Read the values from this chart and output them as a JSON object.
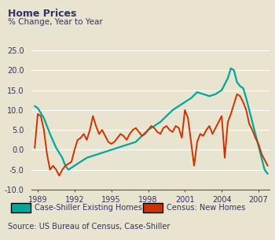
{
  "title": "Home Prices",
  "subtitle": "% Change, Year to Year",
  "source": "Source: US Bureau of Census, Case-Shiller",
  "legend_cs": "Case-Shiller Existing Homes",
  "legend_cn": "Census: New Homes",
  "color_cs": "#00a89c",
  "color_cn": "#cc3300",
  "bg_color": "#e8e4d0",
  "ylim": [
    -10.0,
    25.0
  ],
  "yticks": [
    -10.0,
    -5.0,
    0.0,
    5.0,
    10.0,
    15.0,
    20.0,
    25.0
  ],
  "xticks": [
    1989,
    1992,
    1995,
    1998,
    2001,
    2004,
    2007
  ],
  "xlim": [
    1988.5,
    2007.9
  ],
  "case_shiller": [
    [
      1988.75,
      11.0
    ],
    [
      1989.0,
      10.5
    ],
    [
      1989.5,
      8.0
    ],
    [
      1990.0,
      4.0
    ],
    [
      1990.5,
      0.5
    ],
    [
      1991.0,
      -2.0
    ],
    [
      1991.25,
      -4.0
    ],
    [
      1991.5,
      -5.0
    ],
    [
      1992.0,
      -4.0
    ],
    [
      1992.5,
      -3.0
    ],
    [
      1993.0,
      -2.0
    ],
    [
      1993.5,
      -1.5
    ],
    [
      1994.0,
      -1.0
    ],
    [
      1994.5,
      -0.5
    ],
    [
      1995.0,
      0.0
    ],
    [
      1995.5,
      0.5
    ],
    [
      1996.0,
      1.0
    ],
    [
      1996.5,
      1.5
    ],
    [
      1997.0,
      2.0
    ],
    [
      1997.5,
      3.5
    ],
    [
      1998.0,
      5.0
    ],
    [
      1998.5,
      6.0
    ],
    [
      1999.0,
      7.0
    ],
    [
      1999.5,
      8.5
    ],
    [
      2000.0,
      10.0
    ],
    [
      2000.5,
      11.0
    ],
    [
      2001.0,
      12.0
    ],
    [
      2001.5,
      13.0
    ],
    [
      2002.0,
      14.5
    ],
    [
      2002.5,
      14.0
    ],
    [
      2003.0,
      13.5
    ],
    [
      2003.5,
      14.0
    ],
    [
      2004.0,
      15.0
    ],
    [
      2004.25,
      16.5
    ],
    [
      2004.5,
      18.0
    ],
    [
      2004.75,
      20.5
    ],
    [
      2005.0,
      20.0
    ],
    [
      2005.25,
      17.0
    ],
    [
      2005.5,
      16.0
    ],
    [
      2005.75,
      15.5
    ],
    [
      2006.0,
      13.0
    ],
    [
      2006.25,
      10.0
    ],
    [
      2006.5,
      7.0
    ],
    [
      2006.75,
      4.0
    ],
    [
      2007.0,
      1.0
    ],
    [
      2007.25,
      -2.0
    ],
    [
      2007.5,
      -5.0
    ],
    [
      2007.75,
      -6.0
    ]
  ],
  "census": [
    [
      1988.75,
      0.5
    ],
    [
      1989.0,
      9.0
    ],
    [
      1989.25,
      8.5
    ],
    [
      1989.5,
      5.0
    ],
    [
      1989.75,
      -1.0
    ],
    [
      1990.0,
      -5.0
    ],
    [
      1990.25,
      -4.0
    ],
    [
      1990.5,
      -5.0
    ],
    [
      1990.75,
      -6.5
    ],
    [
      1991.0,
      -5.0
    ],
    [
      1991.25,
      -4.0
    ],
    [
      1991.5,
      -3.5
    ],
    [
      1991.75,
      -3.0
    ],
    [
      1992.0,
      0.0
    ],
    [
      1992.25,
      2.5
    ],
    [
      1992.5,
      3.0
    ],
    [
      1992.75,
      4.0
    ],
    [
      1993.0,
      2.5
    ],
    [
      1993.25,
      5.0
    ],
    [
      1993.5,
      8.5
    ],
    [
      1993.75,
      6.0
    ],
    [
      1994.0,
      4.0
    ],
    [
      1994.25,
      5.0
    ],
    [
      1994.5,
      3.5
    ],
    [
      1994.75,
      2.0
    ],
    [
      1995.0,
      1.5
    ],
    [
      1995.25,
      2.0
    ],
    [
      1995.5,
      3.0
    ],
    [
      1995.75,
      4.0
    ],
    [
      1996.0,
      3.5
    ],
    [
      1996.25,
      2.5
    ],
    [
      1996.5,
      4.0
    ],
    [
      1996.75,
      5.0
    ],
    [
      1997.0,
      5.5
    ],
    [
      1997.25,
      4.5
    ],
    [
      1997.5,
      3.5
    ],
    [
      1997.75,
      4.0
    ],
    [
      1998.0,
      5.0
    ],
    [
      1998.25,
      6.0
    ],
    [
      1998.5,
      5.5
    ],
    [
      1998.75,
      4.5
    ],
    [
      1999.0,
      4.0
    ],
    [
      1999.25,
      5.5
    ],
    [
      1999.5,
      6.0
    ],
    [
      1999.75,
      5.0
    ],
    [
      2000.0,
      4.5
    ],
    [
      2000.25,
      6.0
    ],
    [
      2000.5,
      5.5
    ],
    [
      2000.75,
      3.0
    ],
    [
      2001.0,
      10.0
    ],
    [
      2001.25,
      8.0
    ],
    [
      2001.5,
      2.0
    ],
    [
      2001.75,
      -4.0
    ],
    [
      2002.0,
      2.0
    ],
    [
      2002.25,
      4.0
    ],
    [
      2002.5,
      3.5
    ],
    [
      2002.75,
      5.0
    ],
    [
      2003.0,
      6.0
    ],
    [
      2003.25,
      4.0
    ],
    [
      2003.5,
      5.5
    ],
    [
      2003.75,
      7.0
    ],
    [
      2004.0,
      8.5
    ],
    [
      2004.25,
      -2.0
    ],
    [
      2004.5,
      7.0
    ],
    [
      2004.75,
      9.0
    ],
    [
      2005.0,
      11.5
    ],
    [
      2005.25,
      14.0
    ],
    [
      2005.5,
      13.5
    ],
    [
      2005.75,
      12.0
    ],
    [
      2006.0,
      10.0
    ],
    [
      2006.25,
      6.5
    ],
    [
      2006.5,
      5.0
    ],
    [
      2006.75,
      3.0
    ],
    [
      2007.0,
      1.5
    ],
    [
      2007.25,
      -1.0
    ],
    [
      2007.5,
      -2.5
    ],
    [
      2007.75,
      -4.0
    ]
  ]
}
